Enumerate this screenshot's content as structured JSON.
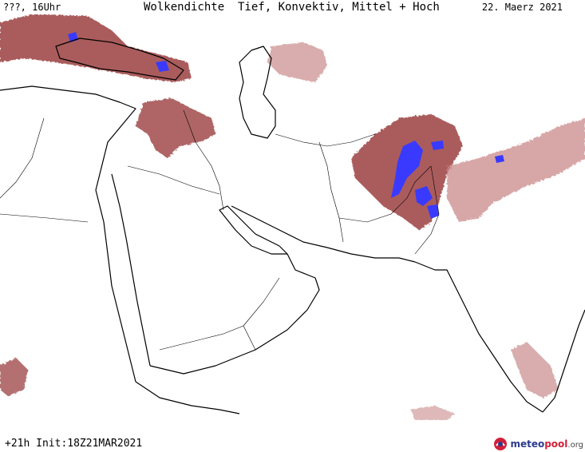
{
  "header": {
    "run_label": "???, 16Uhr",
    "title": "Wolkendichte  Tief, Konvektiv, Mittel + Hoch",
    "date": "22. Maerz 2021"
  },
  "footer": {
    "init_label": "+21h Init:18Z21MAR2021",
    "brand_part1": "meteo",
    "brand_part2": "pool",
    "brand_part3": ".org"
  },
  "map": {
    "region": "Middle East / South Asia",
    "colors": {
      "land_outline": "#000000",
      "cloud_dense": "#9b4040",
      "cloud_light": "#c98a8a",
      "convective": "#3a3aff",
      "background": "#ffffff"
    }
  }
}
